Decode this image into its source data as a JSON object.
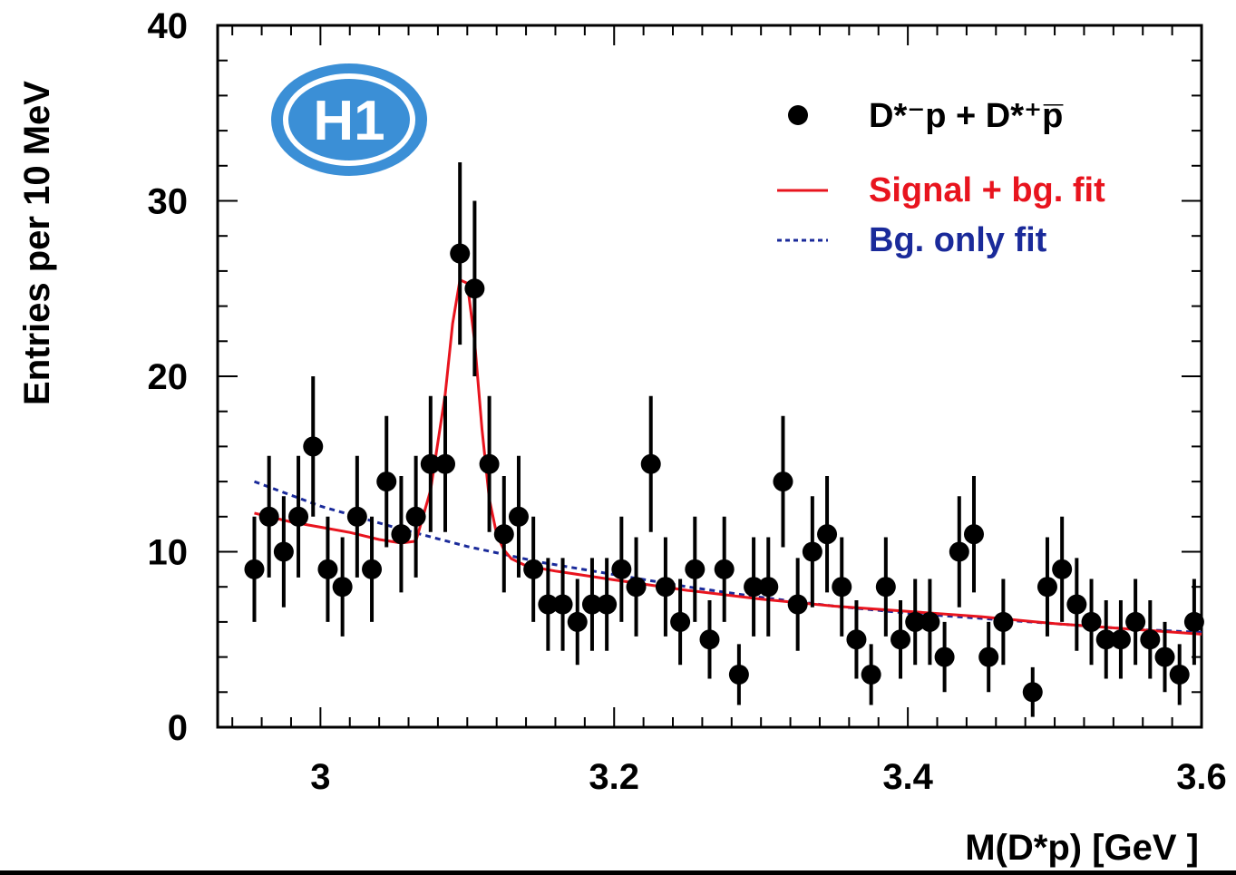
{
  "chart_data": {
    "type": "scatter",
    "title": "",
    "xlabel": "M(D*p)  [GeV ]",
    "ylabel": "Entries per 10 MeV",
    "xlim": [
      2.93,
      3.6
    ],
    "ylim": [
      0,
      40
    ],
    "x_ticks": [
      {
        "value": 3.0,
        "label": "3"
      },
      {
        "value": 3.2,
        "label": "3.2"
      },
      {
        "value": 3.4,
        "label": "3.4"
      },
      {
        "value": 3.6,
        "label": "3.6"
      }
    ],
    "y_ticks": [
      {
        "value": 0,
        "label": "0"
      },
      {
        "value": 10,
        "label": "10"
      },
      {
        "value": 20,
        "label": "20"
      },
      {
        "value": 30,
        "label": "30"
      },
      {
        "value": 40,
        "label": "40"
      }
    ],
    "grid": false,
    "legend_position": "top-right",
    "logo": "H1",
    "legend": {
      "data_label": "D*⁻p + D*⁺p̅",
      "signal_label": "Signal + bg. fit",
      "bg_label": "Bg. only fit"
    },
    "colors": {
      "data": "#000000",
      "signal_fit": "#e8141e",
      "bg_fit": "#1a2a9a",
      "logo": "#3b8fd6"
    },
    "data_points": {
      "x": [
        2.955,
        2.965,
        2.975,
        2.985,
        2.995,
        3.005,
        3.015,
        3.025,
        3.035,
        3.045,
        3.055,
        3.065,
        3.075,
        3.085,
        3.095,
        3.105,
        3.115,
        3.125,
        3.135,
        3.145,
        3.155,
        3.165,
        3.175,
        3.185,
        3.195,
        3.205,
        3.215,
        3.225,
        3.235,
        3.245,
        3.255,
        3.265,
        3.275,
        3.285,
        3.295,
        3.305,
        3.315,
        3.325,
        3.335,
        3.345,
        3.355,
        3.365,
        3.375,
        3.385,
        3.395,
        3.405,
        3.415,
        3.425,
        3.435,
        3.445,
        3.455,
        3.465,
        3.475,
        3.485,
        3.495,
        3.505,
        3.515,
        3.525,
        3.535,
        3.545,
        3.555,
        3.565,
        3.575,
        3.585,
        3.595
      ],
      "y": [
        9,
        12,
        10,
        12,
        16,
        9,
        8,
        12,
        9,
        14,
        11,
        12,
        15,
        15,
        27,
        25,
        15,
        11,
        12,
        9,
        7,
        7,
        6,
        7,
        7,
        9,
        8,
        15,
        8,
        6,
        9,
        5,
        9,
        3,
        8,
        8,
        14,
        7,
        10,
        11,
        8,
        5,
        3,
        8,
        5,
        6,
        6,
        4,
        10,
        11,
        4,
        6,
        null,
        2,
        8,
        9,
        7,
        6,
        5,
        5,
        6,
        5,
        4,
        3,
        6
      ]
    },
    "signal_fit": {
      "x": [
        2.955,
        2.98,
        3.0,
        3.02,
        3.04,
        3.055,
        3.065,
        3.075,
        3.085,
        3.09,
        3.095,
        3.1,
        3.105,
        3.11,
        3.115,
        3.12,
        3.125,
        3.13,
        3.14,
        3.16,
        3.2,
        3.25,
        3.3,
        3.35,
        3.4,
        3.45,
        3.5,
        3.55,
        3.6
      ],
      "y": [
        12.2,
        11.7,
        11.4,
        11.1,
        10.7,
        10.5,
        10.6,
        13.5,
        19.0,
        23.0,
        25.5,
        25.3,
        22.0,
        17.0,
        13.0,
        11.0,
        10.1,
        9.6,
        9.2,
        8.9,
        8.4,
        7.8,
        7.3,
        6.9,
        6.6,
        6.3,
        5.9,
        5.6,
        5.3
      ]
    },
    "bg_fit": {
      "x": [
        2.955,
        3.0,
        3.05,
        3.1,
        3.15,
        3.2,
        3.25,
        3.3,
        3.35,
        3.4,
        3.45,
        3.5,
        3.55,
        3.6
      ],
      "y": [
        14.0,
        12.6,
        11.4,
        10.3,
        9.4,
        8.7,
        8.0,
        7.4,
        6.9,
        6.5,
        6.2,
        5.9,
        5.6,
        5.4
      ]
    }
  }
}
